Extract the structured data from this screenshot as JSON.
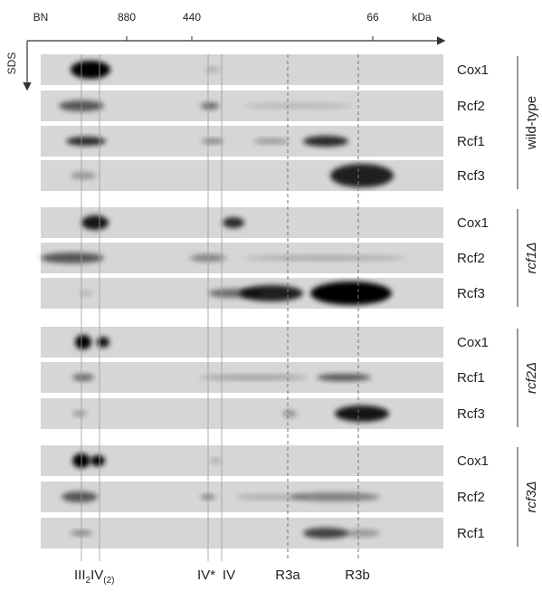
{
  "axis": {
    "top_labels": [
      "BN",
      "880",
      "440",
      "66",
      "kDa"
    ],
    "side_label": "SDS"
  },
  "groups": [
    {
      "label": "wild-type",
      "rows": [
        "Cox1",
        "Rcf2",
        "Rcf1",
        "Rcf3"
      ]
    },
    {
      "label": "rcf1Δ",
      "rows": [
        "Cox1",
        "Rcf2",
        "Rcf3"
      ]
    },
    {
      "label": "rcf2Δ",
      "rows": [
        "Cox1",
        "Rcf1",
        "Rcf3"
      ]
    },
    {
      "label": "rcf3Δ",
      "rows": [
        "Cox1",
        "Rcf2",
        "Rcf1"
      ]
    }
  ],
  "complex_label": {
    "main1": "III",
    "sub1": "2",
    "main2": "IV",
    "sub2": "(2)"
  },
  "bottom_labels": [
    "IV*",
    "IV",
    "R3a",
    "R3b"
  ]
}
